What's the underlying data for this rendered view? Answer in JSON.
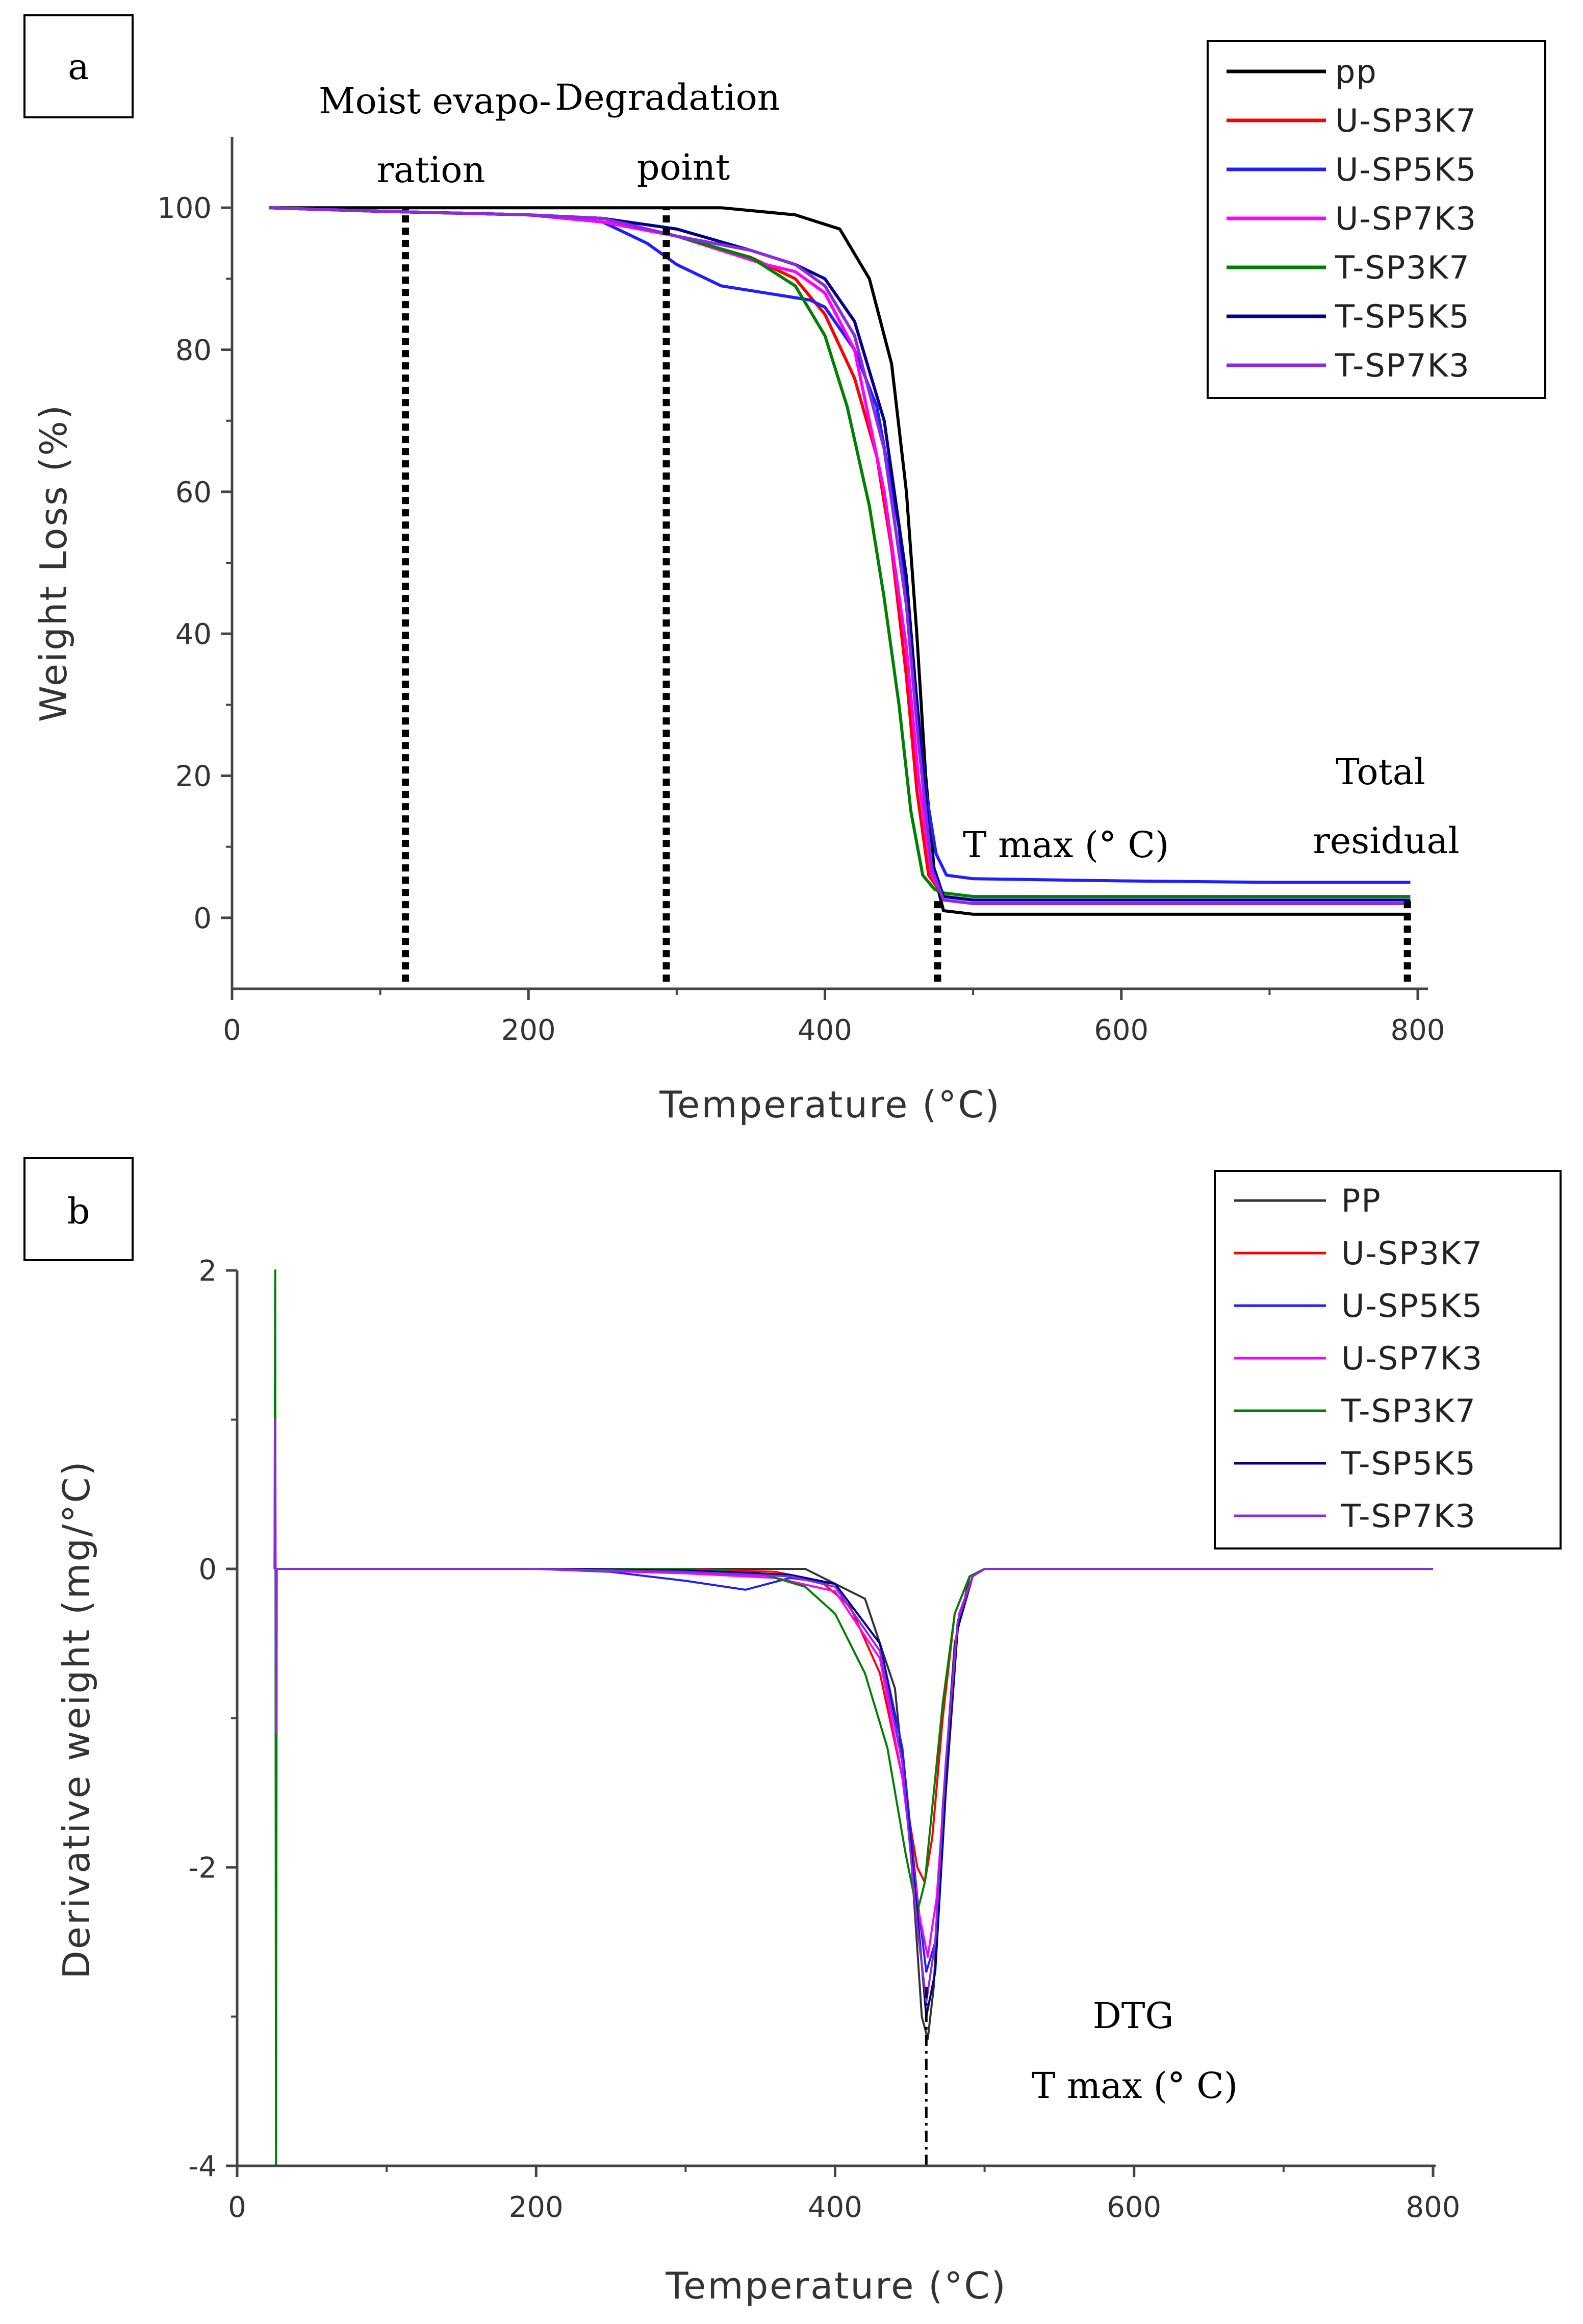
{
  "chart_data": [
    {
      "panel_label": "a",
      "type": "line",
      "xlabel": "Temperature (°C)",
      "ylabel": "Weight Loss (%)",
      "xlim": [
        0,
        800
      ],
      "ylim": [
        -10,
        110
      ],
      "xticks": [
        0,
        200,
        400,
        600,
        800
      ],
      "yticks": [
        0,
        20,
        40,
        60,
        80,
        100
      ],
      "grid": false,
      "legend_position": "top-right",
      "series": [
        {
          "name": "pp",
          "color": "#000000",
          "x": [
            25,
            150,
            250,
            330,
            380,
            410,
            430,
            445,
            455,
            462,
            468,
            474,
            480,
            500,
            600,
            700,
            795
          ],
          "y": [
            100,
            100,
            100,
            100,
            99,
            97,
            90,
            78,
            60,
            40,
            20,
            6,
            1,
            0.5,
            0.5,
            0.5,
            0.5
          ]
        },
        {
          "name": "U-SP3K7",
          "color": "#ff0000",
          "x": [
            25,
            100,
            200,
            250,
            300,
            350,
            380,
            400,
            420,
            435,
            445,
            455,
            462,
            470,
            480,
            500,
            600,
            700,
            795
          ],
          "y": [
            100,
            99.5,
            99,
            98.5,
            96,
            93,
            90,
            85,
            76,
            65,
            52,
            34,
            18,
            6,
            3,
            2.5,
            2.5,
            2.5,
            2.5
          ]
        },
        {
          "name": "U-SP5K5",
          "color": "#1e1eff",
          "x": [
            25,
            100,
            200,
            250,
            280,
            300,
            330,
            360,
            390,
            400,
            420,
            435,
            450,
            460,
            468,
            475,
            482,
            500,
            600,
            700,
            795
          ],
          "y": [
            100,
            99.5,
            99,
            98,
            95,
            92,
            89,
            88,
            87,
            86,
            80,
            72,
            55,
            35,
            18,
            9,
            6,
            5.5,
            5.2,
            5,
            5
          ]
        },
        {
          "name": "U-SP7K3",
          "color": "#ff00ff",
          "x": [
            25,
            100,
            200,
            250,
            300,
            330,
            360,
            380,
            400,
            420,
            440,
            455,
            463,
            472,
            480,
            500,
            600,
            700,
            795
          ],
          "y": [
            100,
            99.5,
            99,
            98,
            96,
            94,
            92,
            91,
            88,
            80,
            60,
            38,
            20,
            6,
            3,
            2.5,
            2.5,
            2.5,
            2.5
          ]
        },
        {
          "name": "T-SP3K7",
          "color": "#008000",
          "x": [
            25,
            100,
            200,
            250,
            300,
            350,
            380,
            400,
            415,
            430,
            440,
            450,
            458,
            466,
            474,
            480,
            500,
            600,
            700,
            795
          ],
          "y": [
            100,
            99.5,
            99,
            98.5,
            96,
            93,
            89,
            82,
            72,
            58,
            45,
            30,
            15,
            6,
            4,
            3.5,
            3,
            3,
            3,
            3
          ]
        },
        {
          "name": "T-SP5K5",
          "color": "#00008b",
          "x": [
            25,
            100,
            200,
            250,
            300,
            350,
            380,
            400,
            420,
            440,
            455,
            463,
            472,
            480,
            500,
            600,
            700,
            795
          ],
          "y": [
            100,
            99.5,
            99,
            98.5,
            97,
            94,
            92,
            90,
            84,
            70,
            48,
            28,
            8,
            3,
            2.5,
            2.5,
            2.5,
            2.5
          ]
        },
        {
          "name": "T-SP7K3",
          "color": "#8a2be2",
          "x": [
            25,
            100,
            200,
            250,
            300,
            350,
            380,
            400,
            420,
            440,
            455,
            463,
            472,
            480,
            500,
            600,
            700,
            795
          ],
          "y": [
            100,
            99.5,
            99,
            98.5,
            96,
            94,
            92,
            89,
            82,
            66,
            44,
            25,
            7,
            2.5,
            2,
            2,
            2,
            2
          ]
        }
      ],
      "markers": [
        {
          "x": 117,
          "ybottom": -9,
          "ytop": 100
        },
        {
          "x": 293,
          "ybottom": -9,
          "ytop": 100
        },
        {
          "x": 476,
          "ybottom": -9,
          "ytop": 3
        },
        {
          "x": 793,
          "ybottom": -9,
          "ytop": 3
        }
      ],
      "annotations": {
        "moist_line1": "Moist evapo-",
        "moist_line2": "ration",
        "degradation_line1": "Degradation",
        "degradation_line2": "point",
        "tmax": "T max (° C)",
        "residual_line1": "Total",
        "residual_line2": "residual"
      }
    },
    {
      "panel_label": "b",
      "type": "line",
      "xlabel": "Temperature (°C)",
      "ylabel": "Derivative weight (mg/°C)",
      "xlim": [
        0,
        800
      ],
      "ylim": [
        -4,
        2
      ],
      "xticks": [
        0,
        200,
        400,
        600,
        800
      ],
      "yticks": [
        -4,
        -2,
        0,
        2
      ],
      "grid": false,
      "legend_position": "top-right",
      "series": [
        {
          "name": "PP",
          "color": "#333333",
          "x": [
            25,
            26,
            27,
            100,
            200,
            300,
            380,
            420,
            440,
            450,
            458,
            462,
            466,
            472,
            480,
            490,
            500,
            600,
            700,
            800
          ],
          "y": [
            0,
            0,
            0,
            0,
            0,
            0,
            0,
            -0.2,
            -0.8,
            -1.8,
            -3.0,
            -3.15,
            -2.8,
            -1.6,
            -0.5,
            -0.05,
            0,
            0,
            0,
            0
          ]
        },
        {
          "name": "U-SP3K7",
          "color": "#ff0000",
          "x": [
            25,
            26,
            27,
            100,
            200,
            300,
            360,
            390,
            410,
            430,
            445,
            455,
            460,
            465,
            472,
            480,
            490,
            500,
            600,
            700,
            800
          ],
          "y": [
            0,
            0,
            0,
            0,
            0,
            0,
            -0.02,
            -0.08,
            -0.25,
            -0.7,
            -1.4,
            -2.0,
            -2.1,
            -1.8,
            -1.0,
            -0.3,
            -0.05,
            0,
            0,
            0,
            0
          ]
        },
        {
          "name": "U-SP5K5",
          "color": "#1e1eff",
          "x": [
            25,
            26,
            27,
            100,
            200,
            250,
            300,
            340,
            370,
            400,
            430,
            445,
            455,
            461,
            467,
            474,
            482,
            492,
            500,
            600,
            700,
            800
          ],
          "y": [
            0,
            0,
            0,
            0,
            0,
            -0.02,
            -0.08,
            -0.14,
            -0.06,
            -0.1,
            -0.5,
            -1.2,
            -2.2,
            -2.7,
            -2.5,
            -1.4,
            -0.4,
            -0.05,
            0,
            0,
            0,
            0
          ]
        },
        {
          "name": "U-SP7K3",
          "color": "#ff00ff",
          "x": [
            25,
            26,
            27,
            100,
            200,
            300,
            360,
            400,
            430,
            445,
            456,
            462,
            468,
            475,
            483,
            492,
            500,
            600,
            700,
            800
          ],
          "y": [
            0,
            0,
            0,
            0,
            0,
            -0.03,
            -0.06,
            -0.15,
            -0.6,
            -1.4,
            -2.3,
            -2.6,
            -2.2,
            -1.2,
            -0.3,
            -0.05,
            0,
            0,
            0,
            0
          ]
        },
        {
          "name": "T-SP3K7",
          "color": "#008000",
          "x": [
            25,
            25.5,
            26,
            26.5,
            27,
            100,
            200,
            300,
            350,
            380,
            400,
            420,
            435,
            447,
            455,
            460,
            465,
            472,
            480,
            490,
            500,
            600,
            700,
            800
          ],
          "y": [
            0,
            2.0,
            -4.0,
            0,
            0,
            0,
            0,
            0,
            -0.03,
            -0.12,
            -0.3,
            -0.7,
            -1.2,
            -1.9,
            -2.3,
            -2.1,
            -1.6,
            -0.9,
            -0.3,
            -0.05,
            0,
            0,
            0,
            0
          ]
        },
        {
          "name": "T-SP5K5",
          "color": "#00008b",
          "x": [
            25,
            26,
            27,
            100,
            200,
            300,
            370,
            400,
            430,
            445,
            455,
            461,
            467,
            474,
            482,
            492,
            500,
            600,
            700,
            800
          ],
          "y": [
            0,
            0,
            0,
            0,
            0,
            -0.01,
            -0.04,
            -0.1,
            -0.5,
            -1.3,
            -2.3,
            -3.0,
            -2.7,
            -1.5,
            -0.4,
            -0.05,
            0,
            0,
            0,
            0
          ]
        },
        {
          "name": "T-SP7K3",
          "color": "#8a2be2",
          "x": [
            25,
            25.5,
            26,
            26.5,
            27,
            100,
            200,
            300,
            370,
            400,
            430,
            445,
            455,
            461,
            467,
            474,
            482,
            492,
            500,
            600,
            700,
            800
          ],
          "y": [
            0,
            1.0,
            -1.1,
            0,
            0,
            0,
            0,
            -0.02,
            -0.05,
            -0.12,
            -0.55,
            -1.3,
            -2.4,
            -2.9,
            -2.5,
            -1.3,
            -0.35,
            -0.05,
            0,
            0,
            0,
            0
          ]
        }
      ],
      "markers": [
        {
          "x": 461,
          "ybottom": -4,
          "ytop": -2.8
        }
      ],
      "annotations": {
        "dtg": "DTG",
        "tmax": "T max (° C)"
      }
    }
  ]
}
